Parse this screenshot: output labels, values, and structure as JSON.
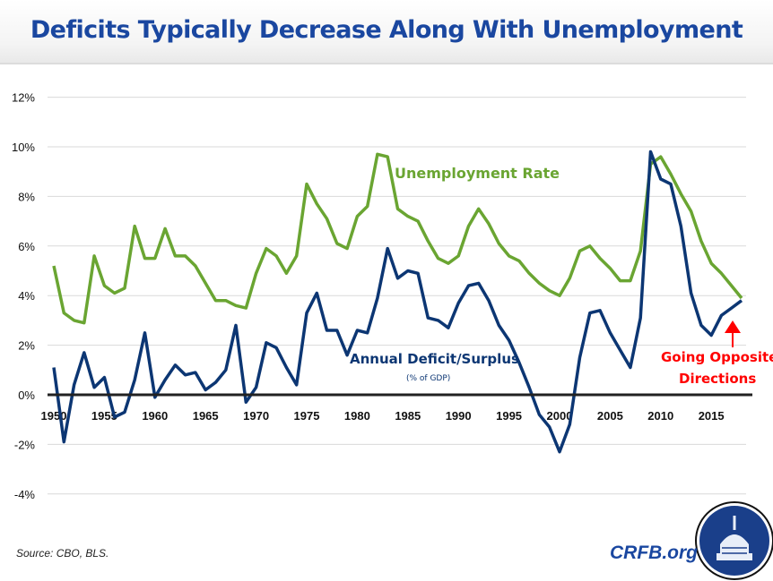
{
  "header": {
    "title": "Deficits Typically Decrease Along With Unemployment"
  },
  "footer": {
    "source": "Source: CBO, BLS.",
    "brand": "CRFB.org"
  },
  "colors": {
    "unemployment": "#6aa532",
    "deficit": "#0c3673",
    "annotation": "#ff0000",
    "title": "#1a47a0"
  },
  "chart_data": {
    "type": "line",
    "title": "Deficits Typically Decrease Along With Unemployment",
    "xlim": [
      1950,
      2018
    ],
    "ylim": [
      -4,
      12
    ],
    "grid": true,
    "x_ticks": [
      "1950",
      "1955",
      "1960",
      "1965",
      "1970",
      "1975",
      "1980",
      "1985",
      "1990",
      "1995",
      "2000",
      "2005",
      "2010",
      "2015"
    ],
    "y_ticks": [
      "12%",
      "10%",
      "8%",
      "6%",
      "4%",
      "2%",
      "0%",
      "-2%",
      "-4%"
    ],
    "y_tick_values": [
      12,
      10,
      8,
      6,
      4,
      2,
      0,
      -2,
      -4
    ],
    "x_start": 1950,
    "series": [
      {
        "name": "Unemployment Rate",
        "color": "#6aa532",
        "values": [
          5.2,
          3.3,
          3.0,
          2.9,
          5.6,
          4.4,
          4.1,
          4.3,
          6.8,
          5.5,
          5.5,
          6.7,
          5.6,
          5.6,
          5.2,
          4.5,
          3.8,
          3.8,
          3.6,
          3.5,
          4.9,
          5.9,
          5.6,
          4.9,
          5.6,
          8.5,
          7.7,
          7.1,
          6.1,
          5.9,
          7.2,
          7.6,
          9.7,
          9.6,
          7.5,
          7.2,
          7.0,
          6.2,
          5.5,
          5.3,
          5.6,
          6.8,
          7.5,
          6.9,
          6.1,
          5.6,
          5.4,
          4.9,
          4.5,
          4.2,
          4.0,
          4.7,
          5.8,
          6.0,
          5.5,
          5.1,
          4.6,
          4.6,
          5.8,
          9.3,
          9.6,
          8.9,
          8.1,
          7.4,
          6.2,
          5.3,
          4.9,
          4.4,
          3.9
        ]
      },
      {
        "name": "Annual Deficit/Surplus",
        "subtitle": "(% of GDP)",
        "color": "#0c3673",
        "values": [
          1.1,
          -1.9,
          0.4,
          1.7,
          0.3,
          0.7,
          -0.9,
          -0.7,
          0.6,
          2.5,
          -0.1,
          0.6,
          1.2,
          0.8,
          0.9,
          0.2,
          0.5,
          1.0,
          2.8,
          -0.3,
          0.3,
          2.1,
          1.9,
          1.1,
          0.4,
          3.3,
          4.1,
          2.6,
          2.6,
          1.6,
          2.6,
          2.5,
          3.9,
          5.9,
          4.7,
          5.0,
          4.9,
          3.1,
          3.0,
          2.7,
          3.7,
          4.4,
          4.5,
          3.8,
          2.8,
          2.2,
          1.3,
          0.3,
          -0.8,
          -1.3,
          -2.3,
          -1.2,
          1.5,
          3.3,
          3.4,
          2.5,
          1.8,
          1.1,
          3.1,
          9.8,
          8.7,
          8.5,
          6.8,
          4.1,
          2.8,
          2.4,
          3.2,
          3.5,
          3.8
        ]
      }
    ],
    "annotations": [
      {
        "text_line1": "Going Opposite",
        "text_line2": "Directions",
        "color": "#ff0000"
      }
    ]
  }
}
